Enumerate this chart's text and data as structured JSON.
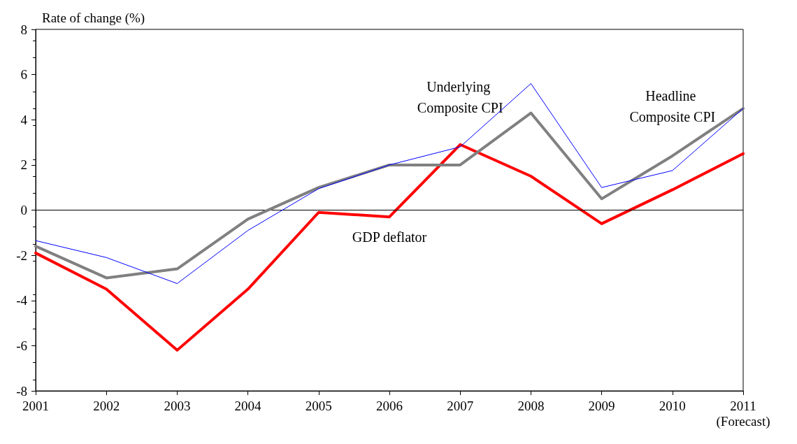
{
  "chart_data": {
    "type": "line",
    "ylabel": "Rate of change (%)",
    "categories": [
      "2001",
      "2002",
      "2003",
      "2004",
      "2005",
      "2006",
      "2007",
      "2008",
      "2009",
      "2010",
      "2011\n(Forecast)"
    ],
    "series": [
      {
        "name": "Underlying Composite CPI",
        "color": "#0000ff",
        "values": [
          -1.35,
          -2.1,
          -3.25,
          -0.9,
          0.95,
          2.0,
          2.8,
          5.6,
          1.0,
          1.75,
          4.5
        ]
      },
      {
        "name": "Headline Composite CPI",
        "color": "#808080",
        "values": [
          -1.6,
          -3.0,
          -2.6,
          -0.4,
          1.0,
          2.0,
          2.0,
          4.3,
          0.5,
          2.4,
          4.5
        ]
      },
      {
        "name": "GDP deflator",
        "color": "#ff0000",
        "values": [
          -1.9,
          -3.5,
          -6.2,
          -3.5,
          -0.1,
          -0.3,
          2.9,
          1.5,
          -0.6,
          0.9,
          2.5
        ]
      }
    ],
    "ylim": [
      -8,
      8
    ],
    "yticks": [
      -8,
      -6,
      -4,
      -2,
      0,
      2,
      4,
      6,
      8
    ],
    "ref_lines": [
      {
        "axis": "y",
        "value": 0,
        "color": "#000000"
      }
    ],
    "grid": false,
    "legend": false,
    "marker": "none",
    "line_style": "solid"
  }
}
